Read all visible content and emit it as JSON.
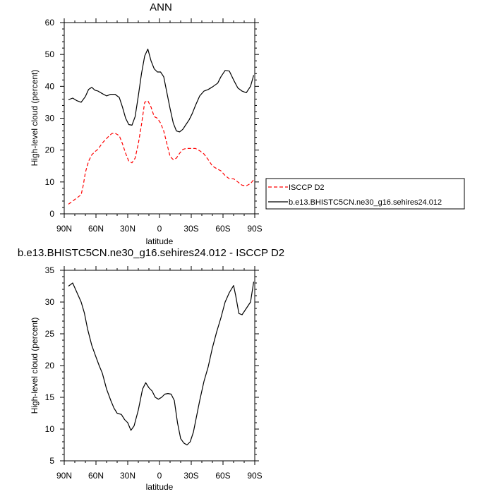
{
  "chart_data": [
    {
      "type": "line",
      "title": "ANN",
      "xlabel": "latitude",
      "ylabel": "High-level cloud (percent)",
      "xlim": [
        90,
        -90
      ],
      "ylim": [
        0,
        60
      ],
      "x_ticks": [
        {
          "value": 90,
          "label": "90N"
        },
        {
          "value": 60,
          "label": "60N"
        },
        {
          "value": 30,
          "label": "30N"
        },
        {
          "value": 0,
          "label": "0"
        },
        {
          "value": -30,
          "label": "30S"
        },
        {
          "value": -60,
          "label": "60S"
        },
        {
          "value": -90,
          "label": "90S"
        }
      ],
      "y_ticks": [
        0,
        10,
        20,
        30,
        40,
        50,
        60
      ],
      "legend": {
        "position": "right",
        "boxed": true
      },
      "series": [
        {
          "name": "ISCCP D2",
          "color": "#ff0000",
          "style": "dashed",
          "x": [
            86,
            82,
            78,
            74,
            72,
            70,
            67,
            64,
            61,
            58,
            54,
            51,
            48,
            45,
            42,
            38,
            35,
            32,
            29,
            26,
            23,
            20,
            17,
            14,
            11,
            8,
            5,
            2,
            -1,
            -4,
            -7,
            -10,
            -13,
            -16,
            -19,
            -22,
            -25,
            -28,
            -31,
            -34,
            -38,
            -42,
            -46,
            -50,
            -55,
            -58,
            -62,
            -66,
            -70,
            -74,
            -78,
            -82,
            -86,
            -89
          ],
          "y": [
            3,
            4,
            5,
            6,
            9,
            13,
            16.5,
            18.5,
            19.5,
            20.3,
            22.2,
            23.3,
            24.3,
            25.2,
            25.3,
            24.5,
            22,
            19,
            16.5,
            16,
            17.5,
            22,
            28,
            35,
            35.5,
            33.5,
            30.5,
            30,
            28.5,
            26,
            22,
            18,
            17,
            17.5,
            19,
            20.2,
            20.5,
            20.5,
            20.5,
            20.5,
            19.8,
            18.8,
            17,
            15,
            14,
            13.5,
            12,
            11,
            11,
            10,
            9,
            8.8,
            9.5,
            10.7
          ]
        },
        {
          "name": "b.e13.BHISTC5CN.ne30_g16.sehires24.012",
          "color": "#000000",
          "style": "solid",
          "x": [
            86,
            82,
            78,
            74,
            70,
            67,
            64,
            61,
            58,
            54,
            50,
            46,
            42,
            38,
            35,
            32,
            29,
            26,
            23,
            20,
            17,
            14,
            11,
            8,
            5,
            2,
            -1,
            -4,
            -7,
            -10,
            -13,
            -16,
            -19,
            -22,
            -25,
            -28,
            -31,
            -34,
            -38,
            -42,
            -46,
            -50,
            -55,
            -58,
            -62,
            -66,
            -70,
            -74,
            -78,
            -82,
            -86,
            -89
          ],
          "y": [
            35.8,
            36.3,
            35.5,
            35,
            36.8,
            39,
            39.7,
            38.8,
            38.5,
            37.7,
            37,
            37.5,
            37.5,
            36.5,
            33.5,
            30,
            28,
            27.8,
            30.5,
            37,
            44,
            49.5,
            51.7,
            48,
            45.5,
            44.5,
            44.5,
            43,
            38,
            33,
            28.5,
            26,
            25.7,
            26.5,
            28,
            29.5,
            31.5,
            34,
            37,
            38.5,
            39,
            39.8,
            41,
            43,
            45,
            44.8,
            42,
            39.5,
            38.5,
            38,
            40,
            43.5
          ]
        }
      ]
    },
    {
      "type": "line",
      "title": "b.e13.BHISTC5CN.ne30_g16.sehires24.012 - ISCCP D2",
      "xlabel": "latitude",
      "ylabel": "High-level cloud (percent)",
      "xlim": [
        90,
        -90
      ],
      "ylim": [
        5,
        35
      ],
      "x_ticks": [
        {
          "value": 90,
          "label": "90N"
        },
        {
          "value": 60,
          "label": "60N"
        },
        {
          "value": 30,
          "label": "30N"
        },
        {
          "value": 0,
          "label": "0"
        },
        {
          "value": -30,
          "label": "30S"
        },
        {
          "value": -60,
          "label": "60S"
        },
        {
          "value": -90,
          "label": "90S"
        }
      ],
      "y_ticks": [
        5,
        10,
        15,
        20,
        25,
        30,
        35
      ],
      "series": [
        {
          "color": "#000000",
          "style": "solid",
          "x": [
            86,
            82,
            78,
            74,
            71,
            68,
            64,
            61,
            57,
            54,
            50,
            46,
            43,
            40,
            36,
            33,
            30,
            27,
            24,
            20,
            16,
            13,
            10,
            7,
            4,
            1,
            -2,
            -5,
            -8,
            -11,
            -14,
            -17,
            -20,
            -23,
            -26,
            -29,
            -32,
            -35,
            -38,
            -42,
            -46,
            -50,
            -54,
            -58,
            -62,
            -66,
            -70,
            -72,
            -75,
            -78,
            -82,
            -86,
            -89
          ],
          "y": [
            32.5,
            33,
            31.5,
            30,
            28.3,
            25.8,
            23.2,
            21.8,
            20,
            18.8,
            16.3,
            14.5,
            13.3,
            12.5,
            12.3,
            11.5,
            11,
            9.8,
            10.5,
            13,
            16.3,
            17.3,
            16.5,
            16,
            15,
            14.7,
            15,
            15.5,
            15.6,
            15.5,
            14.5,
            11,
            8.5,
            7.8,
            7.5,
            8,
            9.5,
            12,
            14.5,
            17.5,
            19.8,
            22.8,
            25.3,
            27.5,
            30,
            31.5,
            32.6,
            31,
            28.2,
            28,
            29,
            30,
            33.2
          ]
        }
      ]
    }
  ]
}
